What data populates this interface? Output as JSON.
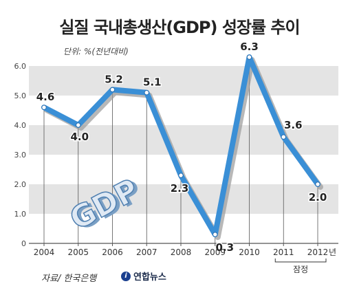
{
  "title": "실질 국내총생산(GDP) 성장률 추이",
  "unit": "단위: %(전년대비)",
  "source": "자료/ 한국은행",
  "logo_text": "연합뉴스",
  "logo_mark": "i",
  "gdp_graphic_text": "GDP",
  "provisional_label": "잠정",
  "year_suffix": "년",
  "colors": {
    "line": "#3a8fd6",
    "shadow": "#9a9a9a",
    "band": "#e4e4e4",
    "point": "#ffffff"
  },
  "chart_data": {
    "type": "line",
    "title": "실질 국내총생산(GDP) 성장률 추이",
    "ylabel": "단위: %(전년대비)",
    "categories": [
      "2004",
      "2005",
      "2006",
      "2007",
      "2008",
      "2009",
      "2010",
      "2011",
      "2012"
    ],
    "values": [
      4.6,
      4.0,
      5.2,
      5.1,
      2.3,
      0.3,
      6.3,
      3.6,
      2.0
    ],
    "value_labels": [
      "4.6",
      "4.0",
      "5.2",
      "5.1",
      "2.3",
      "0.3",
      "6.3",
      "3.6",
      "2.0"
    ],
    "yticks": [
      "0",
      "1.0",
      "2.0",
      "3.0",
      "4.0",
      "5.0",
      "6.0"
    ],
    "ylim": [
      0,
      6.0
    ],
    "grid": "alternating horizontal bands",
    "provisional": [
      "2011",
      "2012"
    ]
  }
}
